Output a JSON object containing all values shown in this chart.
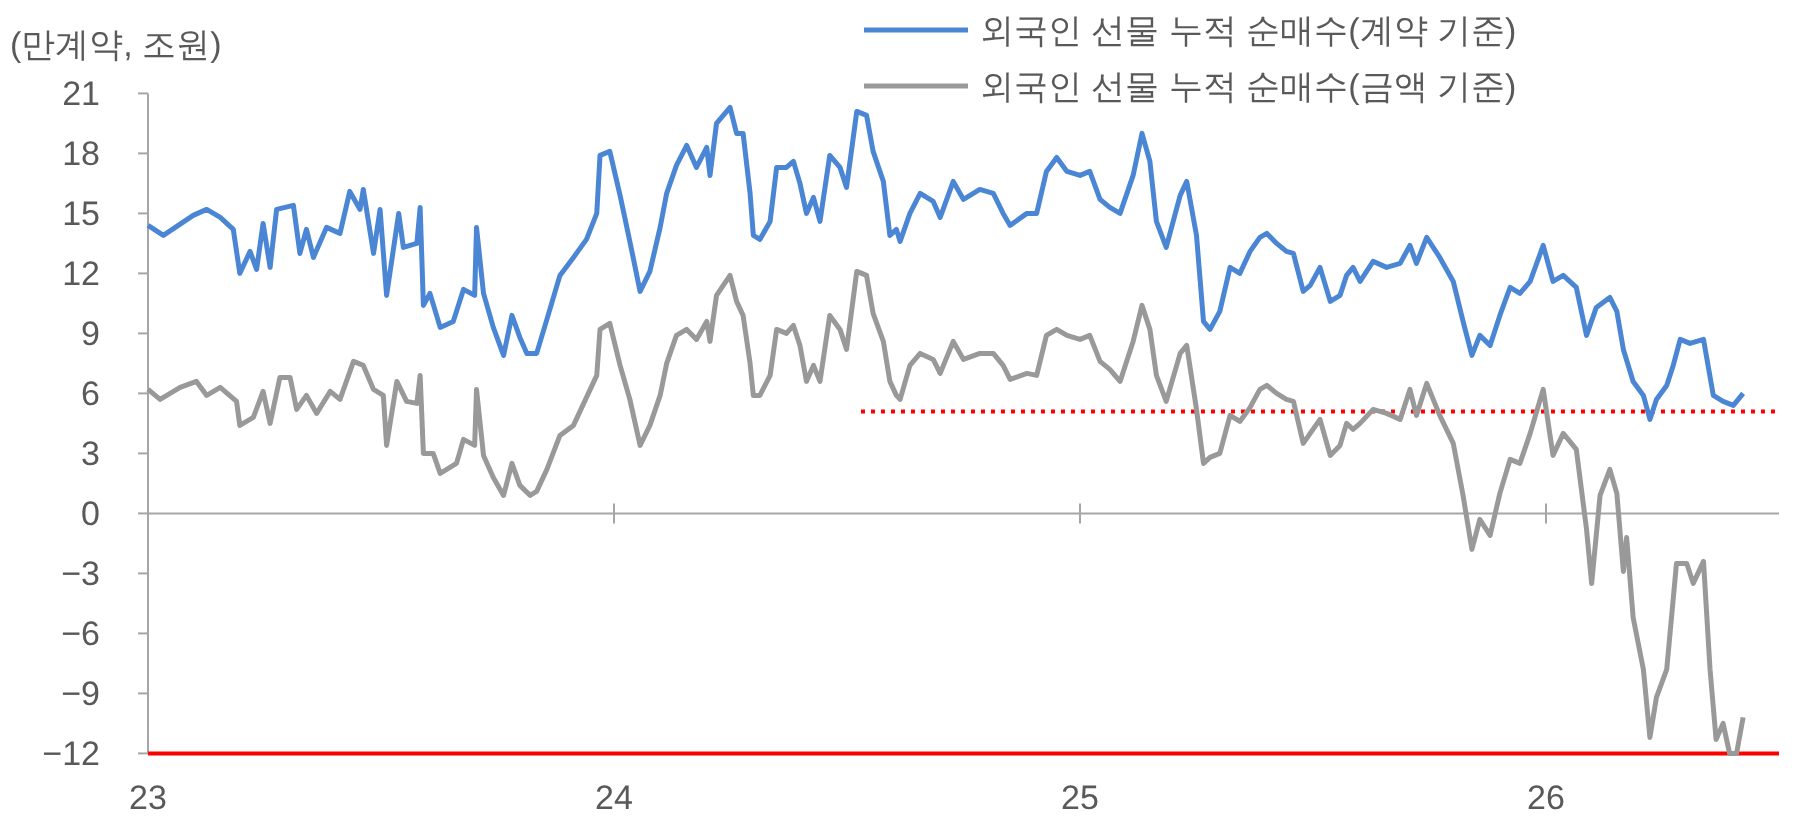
{
  "chart_data": {
    "type": "line",
    "ylabel": "(만계약, 조원)",
    "legend": "top right",
    "xlim": [
      23,
      26.5
    ],
    "ylim": [
      -12,
      21
    ],
    "xticks": [
      23,
      24,
      25,
      26
    ],
    "yticks": [
      21,
      18,
      15,
      12,
      9,
      6,
      3,
      0,
      {
        "value": -3,
        "label": "−3"
      },
      {
        "value": -6,
        "label": "−6"
      },
      {
        "value": -9,
        "label": "−9"
      },
      {
        "value": -12,
        "label": "−12"
      }
    ],
    "ref_lines": [
      {
        "axis": "y",
        "value": -12,
        "color": "#ff0000",
        "line_style": "solid"
      }
    ],
    "series": [
      {
        "name": "외국인 선물 누적 순매수(계약 기준)",
        "color": "#4a86d4",
        "line_style": "solid",
        "x": [
          23.0,
          23.033,
          23.097,
          23.126,
          23.155,
          23.183,
          23.197,
          23.219,
          23.233,
          23.247,
          23.262,
          23.276,
          23.312,
          23.326,
          23.34,
          23.355,
          23.383,
          23.412,
          23.433,
          23.455,
          23.462,
          23.484,
          23.498,
          23.512,
          23.538,
          23.548,
          23.577,
          23.584,
          23.591,
          23.605,
          23.627,
          23.655,
          23.677,
          23.701,
          23.705,
          23.72,
          23.741,
          23.763,
          23.781,
          23.798,
          23.813,
          23.834,
          23.856,
          23.884,
          23.913,
          23.941,
          23.963,
          23.97,
          23.991,
          24.013,
          24.034,
          24.056,
          24.077,
          24.099,
          24.113,
          24.134,
          24.156,
          24.177,
          24.199,
          24.206,
          24.22,
          24.249,
          24.263,
          24.277,
          24.292,
          24.299,
          24.313,
          24.335,
          24.349,
          24.37,
          24.385,
          24.399,
          24.413,
          24.428,
          24.442,
          24.463,
          24.485,
          24.499,
          24.521,
          24.542,
          24.556,
          24.578,
          24.592,
          24.606,
          24.614,
          24.635,
          24.657,
          24.685,
          24.7,
          24.728,
          24.75,
          24.785,
          24.814,
          24.835,
          24.85,
          24.886,
          24.907,
          24.928,
          24.95,
          24.972,
          25.0,
          25.021,
          25.043,
          25.064,
          25.086,
          25.114,
          25.133,
          25.15,
          25.164,
          25.185,
          25.215,
          25.229,
          25.25,
          25.265,
          25.279,
          25.3,
          25.322,
          25.343,
          25.365,
          25.386,
          25.401,
          25.422,
          25.443,
          25.458,
          25.479,
          25.494,
          25.515,
          25.537,
          25.558,
          25.572,
          25.586,
          25.601,
          25.629,
          25.658,
          25.687,
          25.708,
          25.722,
          25.744,
          25.772,
          25.801,
          25.822,
          25.841,
          25.858,
          25.88,
          25.901,
          25.923,
          25.944,
          25.966,
          25.994,
          26.015,
          26.037,
          26.065,
          26.087,
          26.108,
          26.137,
          26.152,
          26.166,
          26.187,
          26.209,
          26.223,
          26.237,
          26.259,
          26.273,
          26.288,
          26.309,
          26.338,
          26.359,
          26.38,
          26.402,
          26.423
        ],
        "values": [
          14.4,
          13.9,
          14.9,
          15.2,
          14.8,
          14.2,
          12.0,
          13.1,
          12.2,
          14.5,
          12.3,
          15.2,
          15.4,
          13.0,
          14.2,
          12.8,
          14.3,
          14.0,
          16.1,
          15.2,
          16.2,
          13.0,
          15.2,
          10.9,
          15.0,
          13.3,
          13.5,
          15.3,
          10.4,
          11.0,
          9.3,
          9.6,
          11.2,
          10.9,
          14.3,
          11.0,
          9.3,
          7.9,
          9.9,
          8.8,
          8.0,
          8.0,
          9.7,
          11.9,
          12.8,
          13.7,
          15.0,
          17.9,
          18.1,
          15.9,
          13.6,
          11.1,
          12.1,
          14.3,
          16.0,
          17.4,
          18.4,
          17.3,
          18.3,
          16.9,
          19.5,
          20.3,
          19.0,
          19.0,
          16.0,
          13.9,
          13.7,
          14.6,
          17.3,
          17.3,
          17.6,
          16.5,
          15.0,
          15.8,
          14.6,
          17.9,
          17.3,
          16.3,
          20.1,
          19.9,
          18.1,
          16.6,
          13.9,
          14.2,
          13.6,
          15.0,
          16.0,
          15.6,
          14.8,
          16.6,
          15.7,
          16.2,
          16.0,
          15.0,
          14.4,
          15.0,
          15.0,
          17.1,
          17.8,
          17.1,
          16.9,
          17.1,
          15.7,
          15.3,
          15.0,
          16.9,
          19.0,
          17.6,
          14.6,
          13.3,
          15.9,
          16.6,
          13.9,
          9.6,
          9.2,
          10.1,
          12.3,
          12.0,
          13.1,
          13.8,
          14.0,
          13.5,
          13.1,
          13.0,
          11.1,
          11.4,
          12.3,
          10.6,
          10.9,
          11.9,
          12.3,
          11.6,
          12.6,
          12.3,
          12.5,
          13.4,
          12.5,
          13.8,
          12.8,
          11.6,
          9.6,
          7.9,
          8.9,
          8.4,
          9.9,
          11.3,
          11.0,
          11.6,
          13.4,
          11.6,
          11.9,
          11.3,
          8.9,
          10.3,
          10.8,
          10.1,
          8.2,
          6.6,
          5.9,
          4.7,
          5.7,
          6.4,
          7.4,
          8.7,
          8.5,
          8.7,
          5.9,
          5.6,
          5.4,
          6.0
        ]
      },
      {
        "name": "외국인 선물 누적 순매수(금액 기준)",
        "color": "#999999",
        "line_style": "solid",
        "x": [
          23.0,
          23.026,
          23.069,
          23.104,
          23.126,
          23.155,
          23.19,
          23.197,
          23.226,
          23.247,
          23.262,
          23.283,
          23.305,
          23.319,
          23.34,
          23.362,
          23.391,
          23.412,
          23.441,
          23.462,
          23.484,
          23.505,
          23.512,
          23.534,
          23.555,
          23.577,
          23.584,
          23.591,
          23.612,
          23.627,
          23.662,
          23.677,
          23.701,
          23.705,
          23.72,
          23.741,
          23.763,
          23.781,
          23.798,
          23.82,
          23.834,
          23.856,
          23.884,
          23.913,
          23.941,
          23.963,
          23.97,
          23.991,
          24.013,
          24.034,
          24.056,
          24.077,
          24.099,
          24.113,
          24.134,
          24.156,
          24.177,
          24.199,
          24.206,
          24.22,
          24.249,
          24.263,
          24.277,
          24.292,
          24.299,
          24.313,
          24.335,
          24.349,
          24.37,
          24.385,
          24.399,
          24.413,
          24.428,
          24.442,
          24.463,
          24.485,
          24.499,
          24.521,
          24.542,
          24.556,
          24.578,
          24.592,
          24.606,
          24.614,
          24.635,
          24.657,
          24.685,
          24.7,
          24.728,
          24.75,
          24.785,
          24.814,
          24.835,
          24.85,
          24.886,
          24.907,
          24.928,
          24.95,
          24.972,
          25.0,
          25.021,
          25.043,
          25.064,
          25.086,
          25.114,
          25.133,
          25.15,
          25.164,
          25.185,
          25.215,
          25.229,
          25.25,
          25.265,
          25.279,
          25.3,
          25.322,
          25.343,
          25.365,
          25.386,
          25.401,
          25.422,
          25.443,
          25.458,
          25.479,
          25.494,
          25.515,
          25.537,
          25.558,
          25.572,
          25.586,
          25.601,
          25.629,
          25.658,
          25.687,
          25.708,
          25.722,
          25.744,
          25.772,
          25.801,
          25.822,
          25.841,
          25.858,
          25.88,
          25.901,
          25.923,
          25.944,
          25.966,
          25.994,
          26.015,
          26.037,
          26.065,
          26.087,
          26.098,
          26.116,
          26.137,
          26.152,
          26.166,
          26.173,
          26.187,
          26.209,
          26.223,
          26.237,
          26.259,
          26.28,
          26.302,
          26.316,
          26.338,
          26.352,
          26.365,
          26.38,
          26.394,
          26.409,
          26.423
        ],
        "values": [
          6.2,
          5.7,
          6.3,
          6.6,
          5.9,
          6.3,
          5.6,
          4.4,
          4.8,
          6.1,
          4.5,
          6.8,
          6.8,
          5.2,
          5.9,
          5.0,
          6.1,
          5.7,
          7.6,
          7.4,
          6.2,
          5.9,
          3.4,
          6.6,
          5.6,
          5.5,
          6.9,
          3.0,
          3.0,
          2.0,
          2.5,
          3.7,
          3.4,
          6.2,
          2.9,
          1.8,
          0.9,
          2.5,
          1.4,
          0.9,
          1.1,
          2.2,
          3.9,
          4.4,
          5.8,
          6.9,
          9.2,
          9.5,
          7.4,
          5.7,
          3.4,
          4.4,
          5.9,
          7.5,
          8.9,
          9.2,
          8.7,
          9.6,
          8.6,
          10.9,
          11.9,
          10.6,
          9.9,
          7.5,
          5.9,
          5.9,
          6.9,
          9.2,
          9.0,
          9.4,
          8.4,
          6.6,
          7.4,
          6.6,
          9.9,
          9.2,
          8.2,
          12.1,
          11.9,
          10.0,
          8.6,
          6.6,
          5.9,
          5.7,
          7.4,
          8.0,
          7.7,
          7.0,
          8.6,
          7.7,
          8.0,
          8.0,
          7.4,
          6.7,
          7.0,
          6.9,
          8.9,
          9.2,
          8.9,
          8.7,
          8.9,
          7.6,
          7.2,
          6.6,
          8.6,
          10.4,
          9.2,
          6.9,
          5.6,
          8.0,
          8.4,
          5.2,
          2.5,
          2.8,
          3.0,
          4.9,
          4.6,
          5.3,
          6.2,
          6.4,
          6.0,
          5.7,
          5.6,
          3.5,
          4.0,
          4.7,
          2.9,
          3.4,
          4.5,
          4.2,
          4.5,
          5.2,
          5.0,
          4.7,
          6.2,
          4.9,
          6.5,
          4.9,
          3.5,
          0.9,
          -1.8,
          -0.3,
          -1.1,
          1.0,
          2.7,
          2.5,
          4.0,
          6.2,
          2.9,
          4.0,
          3.2,
          -0.8,
          -3.5,
          0.9,
          2.2,
          1.0,
          -2.9,
          -1.2,
          -5.2,
          -7.8,
          -11.2,
          -9.2,
          -7.8,
          -2.5,
          -2.5,
          -3.5,
          -2.4,
          -7.8,
          -11.3,
          -10.5,
          -12.0,
          -12.0,
          -10.2
        ]
      },
      {
        "type": "line",
        "color": "#ff0000",
        "line_style": "dotted",
        "x": [
          24.53,
          26.5
        ],
        "values": [
          5.1,
          5.1
        ]
      }
    ]
  }
}
